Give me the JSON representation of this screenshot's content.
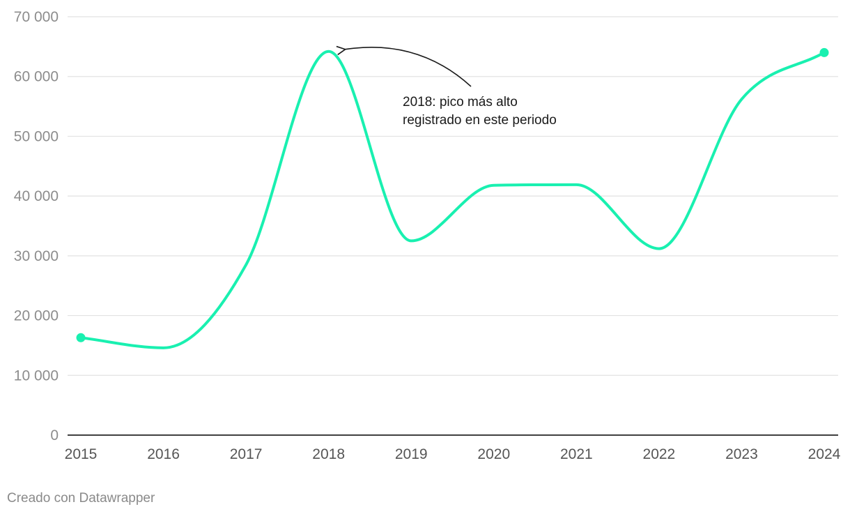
{
  "chart_data": {
    "type": "line",
    "categories": [
      "2015",
      "2016",
      "2017",
      "2018",
      "2019",
      "2020",
      "2021",
      "2022",
      "2023",
      "2024"
    ],
    "series": [
      {
        "values": [
          16300,
          14600,
          28500,
          64200,
          32500,
          41800,
          41900,
          31200,
          56200,
          64000
        ]
      }
    ],
    "y_ticks": [
      "0",
      "10 000",
      "20 000",
      "30 000",
      "40 000",
      "50 000",
      "60 000",
      "70 000"
    ],
    "ylim": [
      0,
      70000
    ],
    "grid": true,
    "annotation": {
      "lines": [
        "2018: pico más alto",
        "registrado en este periodo"
      ],
      "points_to": "2018"
    },
    "colors": {
      "line": "#19f0b0",
      "grid": "#e2e2e2",
      "axis": "#000000"
    }
  },
  "footer": {
    "credit": "Creado con Datawrapper"
  }
}
